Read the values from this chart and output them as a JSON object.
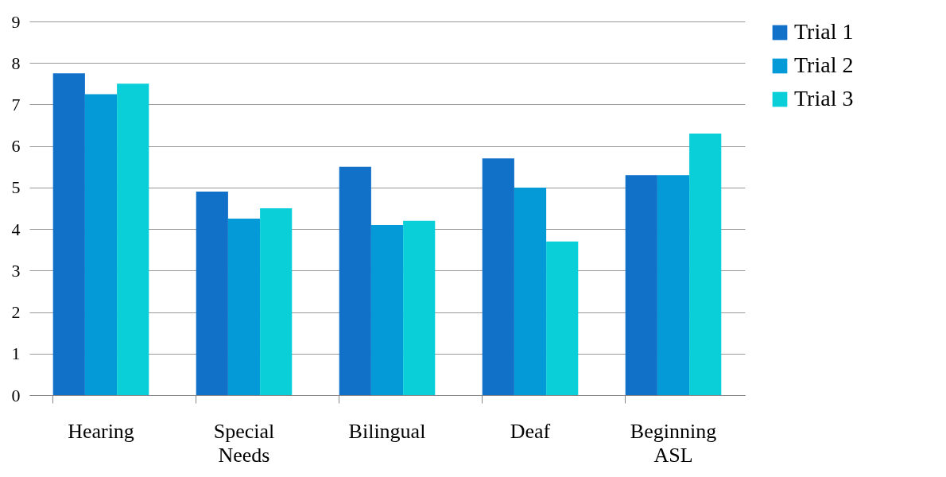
{
  "chart_data": {
    "type": "bar",
    "categories": [
      "Hearing",
      "Special Needs",
      "Bilingual",
      "Deaf",
      "Beginning ASL"
    ],
    "series": [
      {
        "name": "Trial 1",
        "color": "#1170c8",
        "values": [
          7.75,
          4.9,
          5.5,
          5.7,
          5.3
        ]
      },
      {
        "name": "Trial 2",
        "color": "#039ad7",
        "values": [
          7.25,
          4.25,
          4.1,
          5.0,
          5.3
        ]
      },
      {
        "name": "Trial 3",
        "color": "#0acfd9",
        "values": [
          7.5,
          4.5,
          4.2,
          3.7,
          6.3
        ]
      }
    ],
    "ylim": [
      0,
      9
    ],
    "yticks": [
      0,
      1,
      2,
      3,
      4,
      5,
      6,
      7,
      8,
      9
    ],
    "grid": "y",
    "legend": "right"
  }
}
